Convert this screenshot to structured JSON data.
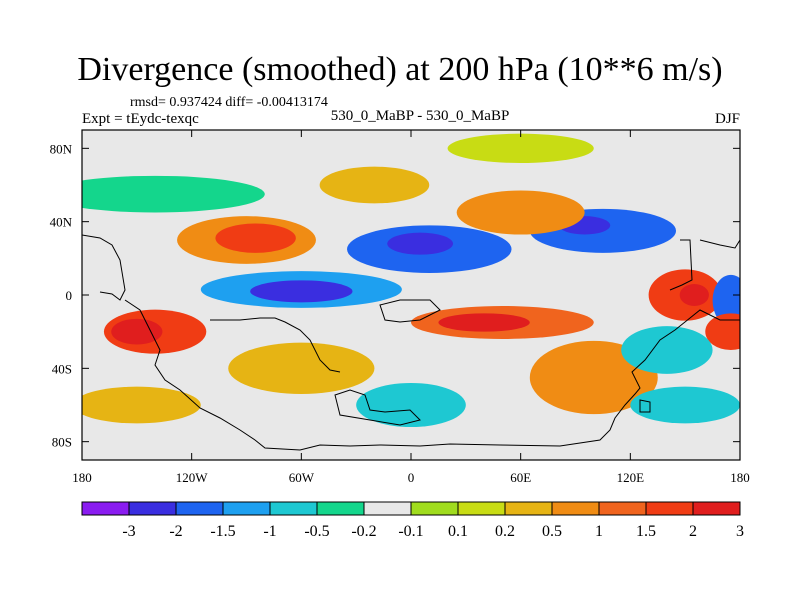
{
  "chart_data": {
    "type": "heatmap",
    "title": "Divergence (smoothed) at 200 hPa (10**6 m/s)",
    "stats": "rmsd= 0.937424 diff= -0.00413174",
    "left_label": "Expt = tEydc-texqc",
    "center_label": "530_0_MaBP - 530_0_MaBP",
    "right_label": "DJF",
    "x_range": [
      -180,
      180
    ],
    "y_range": [
      -90,
      90
    ],
    "x_ticks": [
      {
        "value": -180,
        "label": "180"
      },
      {
        "value": -120,
        "label": "120W"
      },
      {
        "value": -60,
        "label": "60W"
      },
      {
        "value": 0,
        "label": "0"
      },
      {
        "value": 60,
        "label": "60E"
      },
      {
        "value": 120,
        "label": "120E"
      },
      {
        "value": 180,
        "label": "180"
      }
    ],
    "y_ticks": [
      {
        "value": 80,
        "label": "80N"
      },
      {
        "value": 40,
        "label": "40N"
      },
      {
        "value": 0,
        "label": "0"
      },
      {
        "value": -40,
        "label": "40S"
      },
      {
        "value": -80,
        "label": "80S"
      }
    ],
    "colorbar": {
      "colors": [
        "#8a1cf0",
        "#3a2ee0",
        "#1e64f0",
        "#1ea0f0",
        "#1ec8d2",
        "#14d68c",
        "#e8e8e8",
        "#a0dc1e",
        "#c8dc14",
        "#e6b414",
        "#f08c14",
        "#f0641e",
        "#f03c14",
        "#e01e1e"
      ],
      "labels": [
        "-3",
        "-2",
        "-1.5",
        "-1",
        "-0.5",
        "-0.2",
        "-0.1",
        "0.1",
        "0.2",
        "0.5",
        "1",
        "1.5",
        "2",
        "3"
      ]
    },
    "blobs": [
      {
        "lon": -140,
        "lat": -20,
        "rx": 28,
        "ry": 12,
        "level": 12
      },
      {
        "lon": -150,
        "lat": -20,
        "rx": 14,
        "ry": 7,
        "level": 13
      },
      {
        "lon": -90,
        "lat": 30,
        "rx": 38,
        "ry": 13,
        "level": 10
      },
      {
        "lon": -85,
        "lat": 31,
        "rx": 22,
        "ry": 8,
        "level": 12
      },
      {
        "lon": -60,
        "lat": 3,
        "rx": 55,
        "ry": 10,
        "level": 3
      },
      {
        "lon": -60,
        "lat": 2,
        "rx": 28,
        "ry": 6,
        "level": 1
      },
      {
        "lon": 10,
        "lat": 25,
        "rx": 45,
        "ry": 13,
        "level": 2
      },
      {
        "lon": 5,
        "lat": 28,
        "rx": 18,
        "ry": 6,
        "level": 1
      },
      {
        "lon": 105,
        "lat": 35,
        "rx": 40,
        "ry": 12,
        "level": 2
      },
      {
        "lon": 95,
        "lat": 38,
        "rx": 14,
        "ry": 5,
        "level": 1
      },
      {
        "lon": 60,
        "lat": 45,
        "rx": 35,
        "ry": 12,
        "level": 10
      },
      {
        "lon": 50,
        "lat": -15,
        "rx": 50,
        "ry": 9,
        "level": 11
      },
      {
        "lon": 40,
        "lat": -15,
        "rx": 25,
        "ry": 5,
        "level": 13
      },
      {
        "lon": 150,
        "lat": 0,
        "rx": 20,
        "ry": 14,
        "level": 12
      },
      {
        "lon": 155,
        "lat": 0,
        "rx": 8,
        "ry": 6,
        "level": 13
      },
      {
        "lon": 175,
        "lat": -3,
        "rx": 10,
        "ry": 14,
        "level": 2
      },
      {
        "lon": 175,
        "lat": -20,
        "rx": 14,
        "ry": 10,
        "level": 12
      },
      {
        "lon": 100,
        "lat": -45,
        "rx": 35,
        "ry": 20,
        "level": 10
      },
      {
        "lon": 140,
        "lat": -30,
        "rx": 25,
        "ry": 13,
        "level": 4
      },
      {
        "lon": -60,
        "lat": -40,
        "rx": 40,
        "ry": 14,
        "level": 9
      },
      {
        "lon": 0,
        "lat": -60,
        "rx": 30,
        "ry": 12,
        "level": 4
      },
      {
        "lon": -140,
        "lat": 55,
        "rx": 60,
        "ry": 10,
        "level": 5
      },
      {
        "lon": 60,
        "lat": 80,
        "rx": 40,
        "ry": 8,
        "level": 8
      },
      {
        "lon": -150,
        "lat": -60,
        "rx": 35,
        "ry": 10,
        "level": 9
      },
      {
        "lon": 150,
        "lat": -60,
        "rx": 30,
        "ry": 10,
        "level": 4
      },
      {
        "lon": -20,
        "lat": 60,
        "rx": 30,
        "ry": 10,
        "level": 9
      }
    ]
  }
}
